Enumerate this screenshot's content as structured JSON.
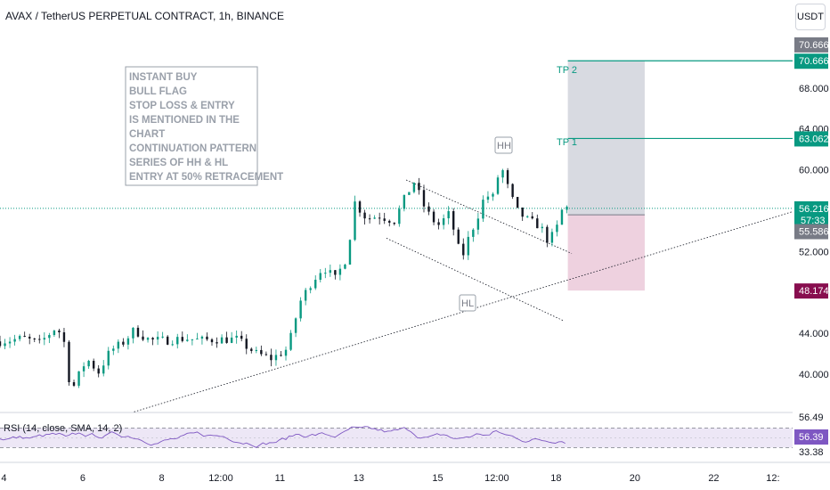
{
  "header": {
    "title": "AVAX / TetherUS PERPETUAL CONTRACT, 1h, BINANCE",
    "currency": "USDT"
  },
  "note": {
    "lines": [
      "INSTANT BUY",
      "BULL FLAG",
      "STOP LOSS & ENTRY",
      "IS MENTIONED IN THE",
      "CHART",
      "CONTINUATION PATTERN",
      "SERIES OF HH &  HL",
      "ENTRY AT 50% RETRACEMENT"
    ]
  },
  "annotations": {
    "hh": "HH",
    "hl": "HL",
    "tp1": "TP 1",
    "tp2": "TP 2"
  },
  "price_labels": {
    "tp2_grey": "70.666",
    "tp2": "70.666",
    "tp1": "63.062",
    "last": "56.216",
    "countdown": "57:33",
    "entry": "55.586",
    "stop": "48.174"
  },
  "rsi": {
    "label": "RSI (14, close, SMA, 14, 2)",
    "upper": "56.49",
    "value": "56.39",
    "lower": "33.38"
  },
  "colors": {
    "up": "#089981",
    "down": "#131722",
    "target_fill": "#d1d4dc",
    "stop_fill": "#ebc9d9",
    "stop_label": "#880e4f",
    "rsi_line": "#7e57c2",
    "rsi_band": "#ede7f6"
  },
  "chart_data": {
    "type": "candlestick",
    "title": "AVAX / TetherUS PERPETUAL CONTRACT, 1h, BINANCE",
    "y_ticks": [
      40,
      44,
      48,
      52,
      56,
      60,
      64,
      68
    ],
    "y_tick_labels": [
      "40.000",
      "44.000",
      "48.000",
      "52.000",
      "56.000",
      "60.000",
      "64.000",
      "68.000"
    ],
    "ylim": [
      36.5,
      74
    ],
    "x_ticks": [
      {
        "label": "4",
        "day": 4
      },
      {
        "label": "6",
        "day": 6
      },
      {
        "label": "8",
        "day": 8
      },
      {
        "label": "12:00",
        "day": 9.5
      },
      {
        "label": "11",
        "day": 11
      },
      {
        "label": "13",
        "day": 13
      },
      {
        "label": "15",
        "day": 15
      },
      {
        "label": "12:00",
        "day": 16.5
      },
      {
        "label": "18",
        "day": 18
      },
      {
        "label": "20",
        "day": 20
      },
      {
        "label": "22",
        "day": 22
      },
      {
        "label": "12:",
        "day": 23.5
      }
    ],
    "xlim": [
      3.9,
      24
    ],
    "price_path": [
      [
        3.9,
        43.2
      ],
      [
        4.5,
        43.5
      ],
      [
        4.9,
        43.0
      ],
      [
        5.3,
        44.5
      ],
      [
        5.5,
        43.8
      ],
      [
        5.7,
        38.2
      ],
      [
        5.85,
        39.5
      ],
      [
        6.1,
        41.5
      ],
      [
        6.4,
        40.2
      ],
      [
        6.7,
        42.3
      ],
      [
        7.0,
        43.0
      ],
      [
        7.3,
        44.3
      ],
      [
        7.7,
        43.3
      ],
      [
        8.1,
        43.3
      ],
      [
        8.6,
        43.5
      ],
      [
        9.0,
        43.3
      ],
      [
        9.4,
        43.4
      ],
      [
        9.9,
        43.4
      ],
      [
        10.4,
        42.0
      ],
      [
        10.8,
        41.5
      ],
      [
        11.2,
        42.5
      ],
      [
        11.5,
        47.0
      ],
      [
        11.8,
        49.0
      ],
      [
        12.1,
        50.5
      ],
      [
        12.4,
        49.3
      ],
      [
        12.7,
        51.5
      ],
      [
        12.9,
        56.8
      ],
      [
        13.2,
        55.2
      ],
      [
        13.5,
        55.5
      ],
      [
        13.9,
        55.0
      ],
      [
        14.2,
        57.5
      ],
      [
        14.4,
        58.8
      ],
      [
        14.7,
        56.0
      ],
      [
        15.0,
        54.5
      ],
      [
        15.3,
        55.7
      ],
      [
        15.6,
        51.2
      ],
      [
        15.8,
        53.5
      ],
      [
        16.0,
        55.3
      ],
      [
        16.2,
        57.5
      ],
      [
        16.4,
        57.3
      ],
      [
        16.6,
        60.5
      ],
      [
        16.8,
        58.0
      ],
      [
        17.0,
        56.0
      ],
      [
        17.3,
        55.0
      ],
      [
        17.6,
        54.5
      ],
      [
        17.8,
        53.0
      ],
      [
        18.0,
        54.0
      ],
      [
        18.1,
        55.5
      ],
      [
        18.2,
        56.5
      ],
      [
        18.3,
        56.2
      ]
    ],
    "last_price": 56.216,
    "levels": {
      "tp2": 70.666,
      "tp1": 63.062,
      "entry": 55.586,
      "stop": 48.174
    },
    "trendlines": [
      {
        "name": "support",
        "from": [
          7.3,
          36.3
        ],
        "to": [
          24,
          55.9
        ]
      },
      {
        "name": "flag-upper",
        "from": [
          14.2,
          59.0
        ],
        "to": [
          18.4,
          51.8
        ]
      },
      {
        "name": "flag-lower",
        "from": [
          13.7,
          53.3
        ],
        "to": [
          18.2,
          45.2
        ]
      }
    ],
    "rsi": {
      "upper_band": 56.49,
      "lower_band": 33.38,
      "current": 56.39
    }
  }
}
